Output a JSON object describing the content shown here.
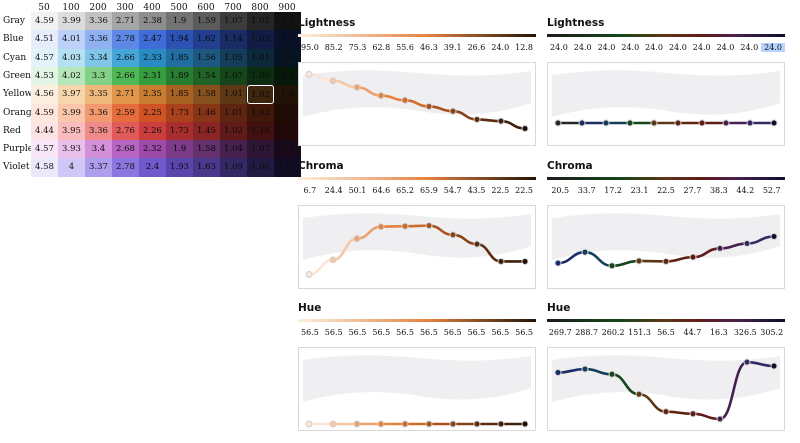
{
  "grid": {
    "columns": [
      "50",
      "100",
      "200",
      "300",
      "400",
      "500",
      "600",
      "700",
      "800",
      "900"
    ],
    "rows": [
      {
        "name": "Gray",
        "values": [
          "4.59",
          "3.99",
          "3.36",
          "2.71",
          "2.38",
          "1.9",
          "1.59",
          "1.07",
          "1.01",
          "1.0"
        ],
        "colors": [
          "#f2f2f2",
          "#dcdcdc",
          "#c2c2c2",
          "#a5a5a5",
          "#8e8e8e",
          "#737373",
          "#5c5c5c",
          "#3c3c3c",
          "#262626",
          "#121212"
        ]
      },
      {
        "name": "Blue",
        "values": [
          "4.51",
          "4.01",
          "3.36",
          "2.78",
          "2.47",
          "1.94",
          "1.62",
          "1.14",
          "1.02",
          "1.0"
        ],
        "colors": [
          "#e6ecfb",
          "#bdd0f8",
          "#8fb0f1",
          "#5e88e6",
          "#3f6cd6",
          "#2c52b4",
          "#223f8f",
          "#192c66",
          "#111d45",
          "#0a1028"
        ]
      },
      {
        "name": "Cyan",
        "values": [
          "4.57",
          "4.03",
          "3.34",
          "2.66",
          "2.33",
          "1.85",
          "1.56",
          "1.05",
          "1.01",
          "1.0"
        ],
        "colors": [
          "#e2f3fa",
          "#b5e0f2",
          "#7fc6e8",
          "#45a6d8",
          "#2a8bc3",
          "#216ea0",
          "#1c5880",
          "#133d59",
          "#0c283b",
          "#061521"
        ]
      },
      {
        "name": "Green",
        "values": [
          "4.53",
          "4.02",
          "3.3",
          "2.66",
          "2.31",
          "1.89",
          "1.54",
          "1.07",
          "1.06",
          "1.0"
        ],
        "colors": [
          "#e3f5e4",
          "#b8e6bb",
          "#82d186",
          "#4fb756",
          "#359d3e",
          "#287d30",
          "#1f6326",
          "#15451a",
          "#0d2d11",
          "#061809"
        ]
      },
      {
        "name": "Yellow",
        "values": [
          "4.56",
          "3.97",
          "3.35",
          "2.71",
          "2.35",
          "1.85",
          "1.58",
          "1.01",
          "1.82",
          "1.0"
        ],
        "colors": [
          "#fbf0e0",
          "#f6d7ad",
          "#eeb87a",
          "#e0974d",
          "#c97d32",
          "#a86324",
          "#86501f",
          "#5d3716",
          "#3e250e",
          "#211306"
        ]
      },
      {
        "name": "Orange",
        "values": [
          "4.59",
          "3.99",
          "3.36",
          "2.59",
          "2.25",
          "1.73",
          "1.46",
          "1.01",
          "1.02",
          "1.0"
        ],
        "colors": [
          "#fde7dc",
          "#f9c6ab",
          "#f29a70",
          "#e56c3b",
          "#cf5325",
          "#a8411c",
          "#883417",
          "#5f2410",
          "#3f180a",
          "#210c05"
        ]
      },
      {
        "name": "Red",
        "values": [
          "4.44",
          "3.95",
          "3.36",
          "2.76",
          "2.26",
          "1.73",
          "1.45",
          "1.02",
          "1.18",
          "1.0"
        ],
        "colors": [
          "#fde3e3",
          "#f8bcbc",
          "#f08b8b",
          "#e25b5b",
          "#cc3d3d",
          "#a82e2e",
          "#8a2525",
          "#611a1a",
          "#411111",
          "#220808"
        ]
      },
      {
        "name": "Purple",
        "values": [
          "4.57",
          "3.93",
          "3.4",
          "2.68",
          "2.32",
          "1.9",
          "1.58",
          "1.04",
          "1.07",
          "1.0"
        ],
        "colors": [
          "#f6e6f7",
          "#e9c0ec",
          "#d38fd9",
          "#b765c2",
          "#9c4ba9",
          "#7d3a89",
          "#64306e",
          "#46214e",
          "#2e1533",
          "#18091b"
        ]
      },
      {
        "name": "Violet",
        "values": [
          "4.58",
          "4",
          "3.37",
          "2.78",
          "2.4",
          "1.93",
          "1.63",
          "1.09",
          "1.06",
          "1.01"
        ],
        "colors": [
          "#ece8fb",
          "#d1c7f6",
          "#ae9eee",
          "#8b76e0",
          "#7159cd",
          "#5a45ab",
          "#49388b",
          "#332863",
          "#221a42",
          "#110c23"
        ]
      }
    ],
    "selected": {
      "row": 4,
      "col": 8
    }
  },
  "panels": [
    {
      "title": "Lightness",
      "values": [
        "95.0",
        "85.2",
        "75.3",
        "62.8",
        "55.6",
        "46.3",
        "39.1",
        "26.6",
        "24.0",
        "12.8"
      ],
      "highlight": -1,
      "gradient": [
        "#fbf0e0",
        "#211306"
      ]
    },
    {
      "title": "Lightness",
      "values": [
        "24.0",
        "24.0",
        "24.0",
        "24.0",
        "24.0",
        "24.0",
        "24.0",
        "24.0",
        "24.0",
        "24.0"
      ],
      "highlight": 9,
      "gradient": [
        "#121212",
        "#0a1028"
      ]
    },
    {
      "title": "Chroma",
      "values": [
        "6.7",
        "24.4",
        "50.1",
        "64.6",
        "65.2",
        "65.9",
        "54.7",
        "43.5",
        "22.5",
        "22.5"
      ],
      "highlight": -1,
      "gradient": [
        "#fbf0e0",
        "#211306"
      ]
    },
    {
      "title": "Chroma",
      "values": [
        "20.5",
        "33.7",
        "17.2",
        "23.1",
        "22.5",
        "27.7",
        "38.3",
        "44.2",
        "52.7"
      ],
      "highlight": -1,
      "gradient": [
        "#121212",
        "#0a1028"
      ]
    },
    {
      "title": "Hue",
      "values": [
        "56.5",
        "56.5",
        "56.5",
        "56.5",
        "56.5",
        "56.5",
        "56.5",
        "56.5",
        "56.5",
        "56.5"
      ],
      "highlight": -1,
      "gradient": [
        "#fbf0e0",
        "#211306"
      ]
    },
    {
      "title": "Hue",
      "values": [
        "269.7",
        "288.7",
        "260.2",
        "151.3",
        "56.5",
        "44.7",
        "16.3",
        "326.5",
        "305.2"
      ],
      "highlight": -1,
      "gradient": [
        "#121212",
        "#0a1028"
      ]
    }
  ],
  "curves": [
    {
      "min": 0,
      "max": 100,
      "points": [
        95.0,
        85.2,
        75.3,
        62.8,
        55.6,
        46.3,
        39.1,
        26.6,
        24.0,
        12.8
      ],
      "colors": [
        "#fbe5d6",
        "#f6c7a4",
        "#eea06c",
        "#e4813f",
        "#cf6a28",
        "#a8531e",
        "#874116",
        "#5a2c0f",
        "#3f1f0b",
        "#1d0e05"
      ]
    },
    {
      "min": 0,
      "max": 100,
      "points": [
        24,
        24,
        24,
        24,
        24,
        24,
        24,
        24,
        24,
        24
      ],
      "colors": [
        "#262626",
        "#192c66",
        "#133d59",
        "#15451a",
        "#5d3716",
        "#5f2410",
        "#611a1a",
        "#46214e",
        "#332863",
        "#0a1028"
      ]
    },
    {
      "min": 0,
      "max": 80,
      "points": [
        6.7,
        24.4,
        50.1,
        64.6,
        65.2,
        65.9,
        54.7,
        43.5,
        22.5,
        22.5
      ],
      "colors": [
        "#fbe5d6",
        "#f6c7a4",
        "#eea06c",
        "#e4813f",
        "#cf6a28",
        "#a8531e",
        "#874116",
        "#5a2c0f",
        "#3f1f0b",
        "#1d0e05"
      ]
    },
    {
      "min": 0,
      "max": 80,
      "points": [
        20.5,
        33.7,
        17.2,
        23.1,
        22.5,
        27.7,
        38.3,
        44.2,
        52.7
      ],
      "colors": [
        "#192c66",
        "#133d59",
        "#15451a",
        "#5d3716",
        "#5f2410",
        "#611a1a",
        "#46214e",
        "#332863",
        "#0a1028"
      ]
    },
    {
      "min": 0,
      "max": 100,
      "points": [
        56.5,
        56.5,
        56.5,
        56.5,
        56.5,
        56.5,
        56.5,
        56.5,
        56.5,
        56.5
      ],
      "flat": 0.06,
      "colors": [
        "#fbe5d6",
        "#f6c7a4",
        "#eea06c",
        "#e4813f",
        "#cf6a28",
        "#a8531e",
        "#874116",
        "#5a2c0f",
        "#3f1f0b",
        "#1d0e05"
      ]
    },
    {
      "min": 0,
      "max": 360,
      "points": [
        269.7,
        288.7,
        260.2,
        151.3,
        56.5,
        44.7,
        16.3,
        326.5,
        305.2
      ],
      "colors": [
        "#192c66",
        "#133d59",
        "#15451a",
        "#5d3716",
        "#5f2410",
        "#611a1a",
        "#46214e",
        "#332863",
        "#0a1028"
      ]
    }
  ]
}
